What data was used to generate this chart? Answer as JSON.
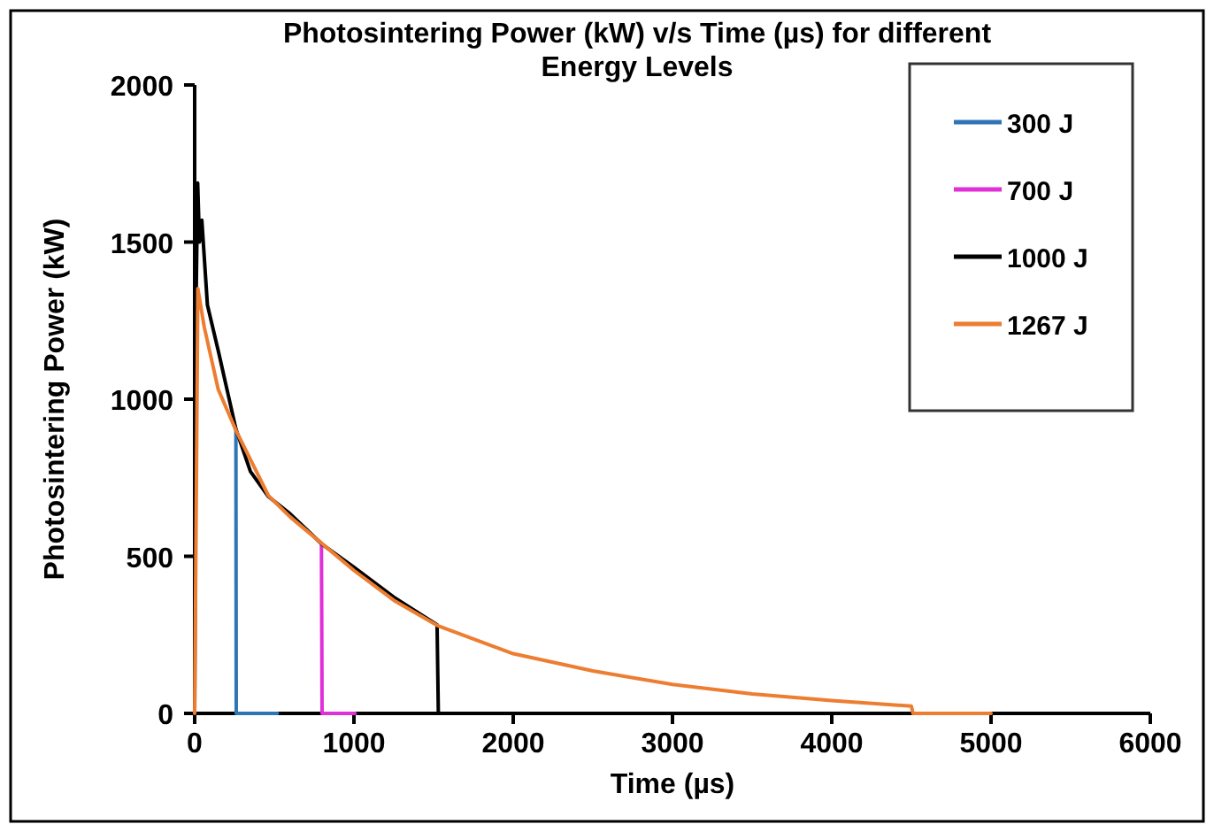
{
  "chart_data": {
    "type": "line",
    "title": "Photosintering Power (kW) v/s Time (µs) for different Energy Levels",
    "xlabel": "Time (µs)",
    "ylabel": "Photosintering Power (kW)",
    "xlim": [
      0,
      6000
    ],
    "xticks": [
      0,
      1000,
      2000,
      3000,
      4000,
      5000,
      6000
    ],
    "ylim": [
      0,
      2000
    ],
    "yticks": [
      0,
      500,
      1000,
      1500,
      2000
    ],
    "grid": false,
    "legend": "top right",
    "marker": "none",
    "line_style": "solid",
    "series": [
      {
        "name": "300 J",
        "color": "#2e75b6",
        "x": [
          259,
          261,
          519
        ],
        "values": [
          901,
          0,
          0
        ]
      },
      {
        "name": "700 J",
        "color": "#e030d8",
        "x": [
          796,
          800,
          1007
        ],
        "values": [
          535,
          0,
          0
        ]
      },
      {
        "name": "1000 J",
        "color": "#000000",
        "x": [
          0,
          10,
          19,
          30,
          45,
          80,
          150,
          259,
          350,
          463,
          600,
          796,
          1000,
          1250,
          1522,
          1530,
          2000
        ],
        "values": [
          0,
          1350,
          1688,
          1500,
          1570,
          1300,
          1150,
          905,
          770,
          690,
          635,
          540,
          465,
          370,
          282,
          0,
          0
        ]
      },
      {
        "name": "1267 J",
        "color": "#ed7d31",
        "x": [
          0,
          20,
          60,
          148,
          259,
          463,
          600,
          796,
          1000,
          1250,
          1522,
          2000,
          2500,
          3000,
          3500,
          4000,
          4500,
          4510,
          5000
        ],
        "values": [
          0,
          1352,
          1230,
          1031,
          901,
          693,
          625,
          542,
          455,
          360,
          280,
          190,
          135,
          92,
          62,
          41,
          23,
          0,
          0
        ]
      }
    ]
  }
}
